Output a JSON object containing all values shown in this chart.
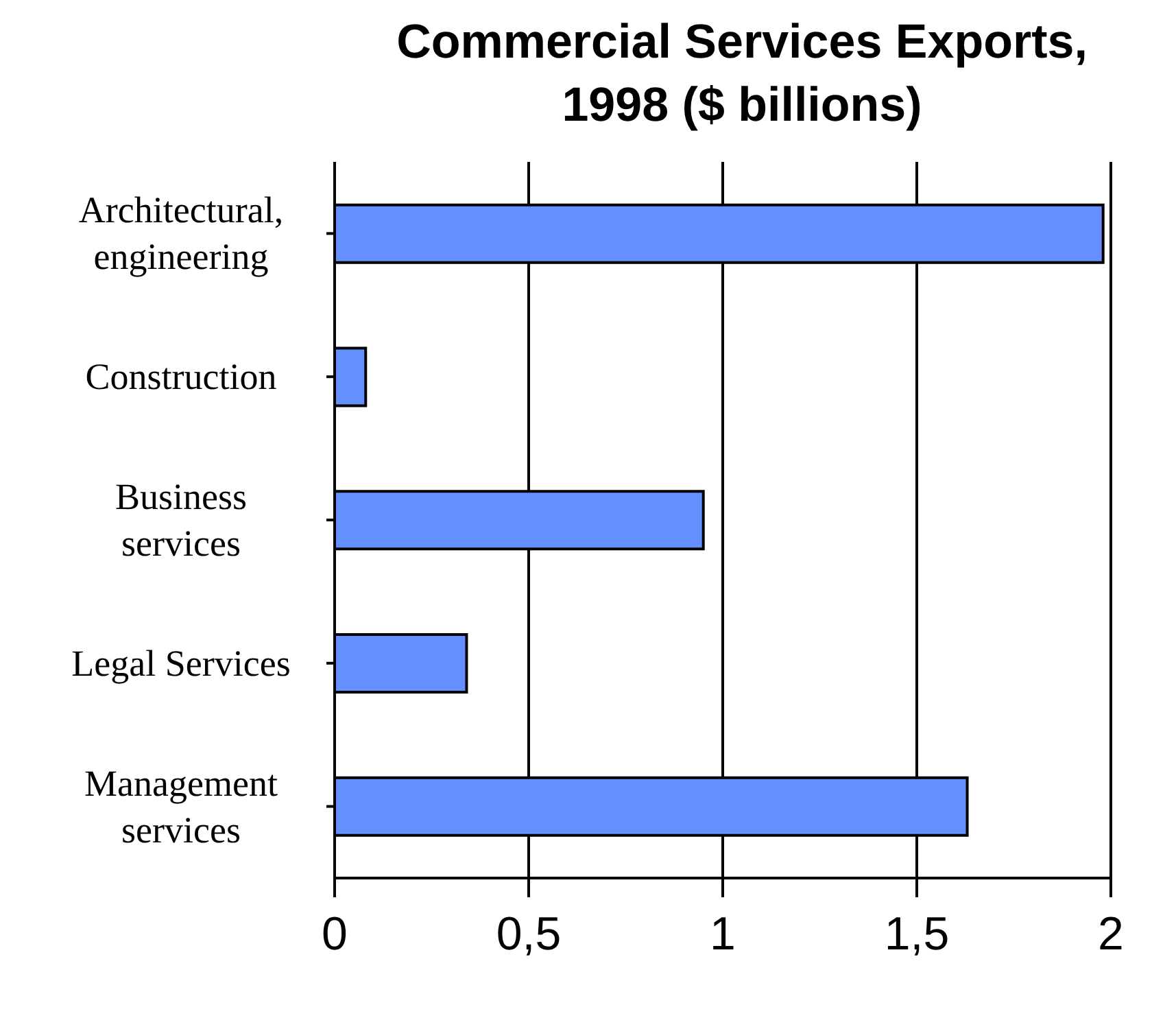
{
  "chart_data": {
    "type": "bar",
    "orientation": "horizontal",
    "title": "Commercial Services Exports, 1998 ($ billions)",
    "categories": [
      "Architectural, engineering",
      "Construction",
      "Business services",
      "Legal Services",
      "Management services"
    ],
    "values": [
      1.98,
      0.08,
      0.95,
      0.34,
      1.63
    ],
    "color": "#6490ff",
    "xlim": [
      0,
      2
    ],
    "xticks": [
      0,
      {
        "value": 0.5,
        "label": "0,5"
      },
      1,
      {
        "value": 1.5,
        "label": "1,5"
      },
      2
    ],
    "grid": "x"
  }
}
